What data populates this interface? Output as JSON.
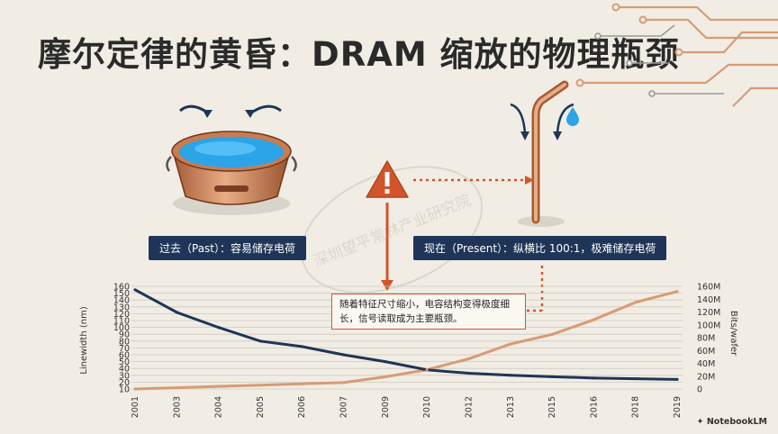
{
  "title": "摩尔定律的黄昏：DRAM 缩放的物理瓶颈",
  "captions": {
    "past": "过去（Past）：容易储存电荷",
    "present": "现在（Present）：纵横比 100:1，极难储存电荷"
  },
  "note": "随着特征尺寸缩小，电容结构变得极度细长，信号读取成为主要瓶颈。",
  "watermark": "深圳望平常林产业研究院",
  "logo": "NotebookLM",
  "icons": {
    "warning": "warning-triangle-icon",
    "bucket": "copper-bucket-icon",
    "straw": "thin-capacitor-straw-icon",
    "droplet": "water-droplet-icon"
  },
  "colors": {
    "navy": "#1e3557",
    "copper": "#d89b74",
    "accent": "#d2542a"
  },
  "chart_data": {
    "type": "line",
    "xlabel": "",
    "ylabel_left": "Linewidth (nm)",
    "ylabel_right": "Bits/wafer",
    "x": [
      "2001",
      "2003",
      "2004",
      "2005",
      "2006",
      "2007",
      "2009",
      "2010",
      "2012",
      "2013",
      "2015",
      "2016",
      "2018",
      "2019"
    ],
    "left_ticks": [
      "160",
      "150",
      "140",
      "130",
      "120",
      "110",
      "100",
      "90",
      "80",
      "70",
      "60",
      "50",
      "40",
      "30",
      "20",
      "10"
    ],
    "right_ticks": [
      "160M",
      "140M",
      "120M",
      "100M",
      "80M",
      "60M",
      "40M",
      "20M",
      "0"
    ],
    "ylim_left": [
      10,
      160
    ],
    "ylim_right": [
      0,
      160
    ],
    "series": [
      {
        "name": "Linewidth (nm)",
        "axis": "left",
        "color": "#1e3557",
        "values": [
          155,
          122,
          100,
          80,
          72,
          60,
          50,
          38,
          33,
          30,
          28,
          26,
          25,
          24
        ]
      },
      {
        "name": "Bits/wafer (M)",
        "axis": "right",
        "color": "#d89b74",
        "values": [
          0,
          2,
          4,
          6,
          8,
          10,
          19,
          30,
          47,
          70,
          85,
          108,
          135,
          152
        ]
      }
    ]
  }
}
